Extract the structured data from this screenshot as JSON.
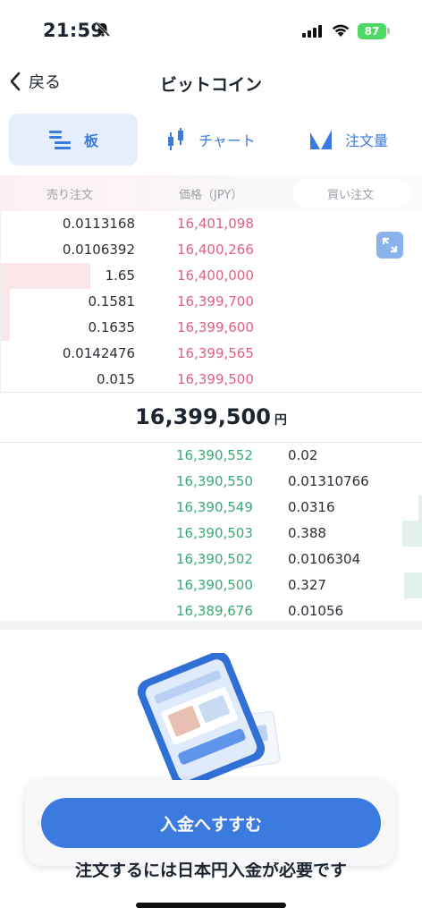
{
  "status_bar": {
    "time": "21:59",
    "battery": "87",
    "icons": [
      "bell-slash-icon",
      "cellular-signal-icon",
      "wifi-icon",
      "battery-icon"
    ]
  },
  "nav": {
    "back_label": "戻る",
    "title": "ビットコイン"
  },
  "tabs": [
    {
      "label": "板",
      "icon": "order-book-icon",
      "selected": true
    },
    {
      "label": "チャート",
      "icon": "candlestick-icon",
      "selected": false
    },
    {
      "label": "注文量",
      "icon": "order-volume-icon",
      "selected": false
    }
  ],
  "order_book": {
    "headers": {
      "sell": "売り注文",
      "price": "価格（JPY）",
      "buy": "買い注文"
    },
    "sell_rows": [
      {
        "qty": "0.0113168",
        "price": "16,401,098",
        "depth": 0
      },
      {
        "qty": "0.0106392",
        "price": "16,400,266",
        "depth": 0
      },
      {
        "qty": "1.65",
        "price": "16,400,000",
        "depth": 100
      },
      {
        "qty": "0.1581",
        "price": "16,399,700",
        "depth": 10
      },
      {
        "qty": "0.1635",
        "price": "16,399,600",
        "depth": 10
      },
      {
        "qty": "0.0142476",
        "price": "16,399,565",
        "depth": 0
      },
      {
        "qty": "0.015",
        "price": "16,399,500",
        "depth": 0
      }
    ],
    "last_price": "16,399,500",
    "currency": "円",
    "buy_rows": [
      {
        "price": "16,390,552",
        "qty": "0.02",
        "depth": 0
      },
      {
        "price": "16,390,550",
        "qty": "0.01310766",
        "depth": 0
      },
      {
        "price": "16,390,549",
        "qty": "0.0316",
        "depth": 4
      },
      {
        "price": "16,390,503",
        "qty": "0.388",
        "depth": 22
      },
      {
        "price": "16,390,502",
        "qty": "0.0106304",
        "depth": 0
      },
      {
        "price": "16,390,500",
        "qty": "0.327",
        "depth": 20
      },
      {
        "price": "16,389,676",
        "qty": "0.01056",
        "depth": 0
      }
    ]
  },
  "cta": {
    "button_label": "入金へすすむ",
    "note": "注文するには日本円入金が必要です"
  },
  "colors": {
    "accent": "#3b7be0",
    "sell": "#e05f82",
    "buy": "#3aa876"
  }
}
